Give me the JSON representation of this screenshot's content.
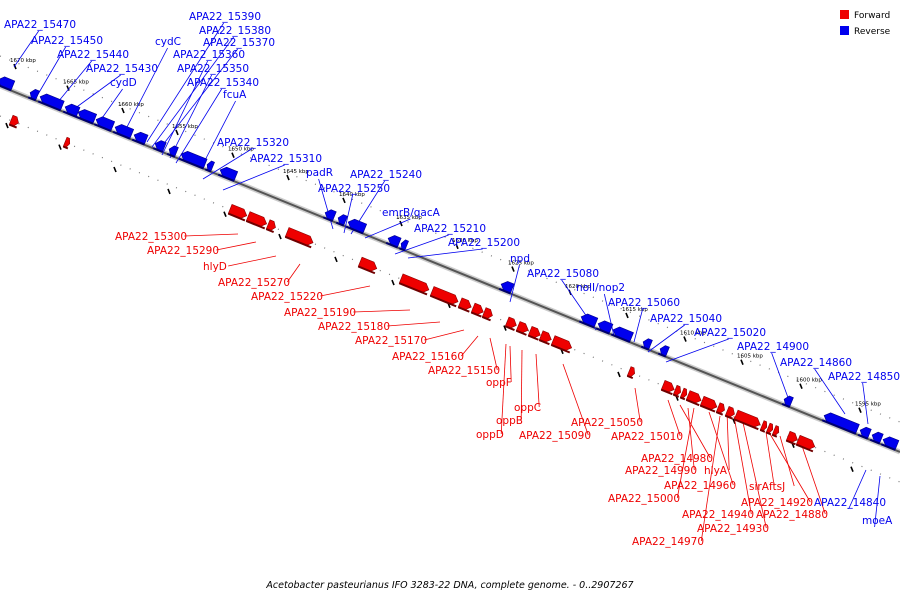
{
  "caption": "Acetobacter pasteurianus IFO 3283-22 DNA, complete genome. - 0..2907267",
  "legend": [
    {
      "label": "Forward",
      "color": "#ee0000"
    },
    {
      "label": "Reverse",
      "color": "#0000ee"
    }
  ],
  "ticks": [
    "1670 kbp",
    "1665 kbp",
    "1660 kbp",
    "1655 kbp",
    "1650 kbp",
    "1645 kbp",
    "1640 kbp",
    "1635 kbp",
    "1630 kbp",
    "1625 kbp",
    "1620 kbp",
    "1615 kbp",
    "1610 kbp",
    "1605 kbp",
    "1600 kbp",
    "1595 kbp"
  ],
  "reverse_genes": [
    "APA22_15470",
    "APA22_15450",
    "APA22_15440",
    "APA22_15430",
    "cydD",
    "cydC",
    "APA22_15390",
    "APA22_15380",
    "APA22_15370",
    "APA22_15360",
    "APA22_15350",
    "APA22_15340",
    "fcuA",
    "APA22_15320",
    "APA22_15310",
    "padR",
    "APA22_15250",
    "APA22_15240",
    "emrB/qacA",
    "APA22_15210",
    "APA22_15200",
    "npd",
    "APA22_15080",
    "nolI/nop2",
    "APA22_15060",
    "APA22_15040",
    "APA22_15020",
    "APA22_14900",
    "APA22_14860",
    "APA22_14850",
    "APA22_14840",
    "moeA"
  ],
  "forward_genes": [
    "APA22_15300",
    "APA22_15290",
    "hlyD",
    "APA22_15270",
    "APA22_15220",
    "APA22_15190",
    "APA22_15180",
    "APA22_15170",
    "APA22_15160",
    "APA22_15150",
    "oppF",
    "oppC",
    "oppB",
    "oppD",
    "APA22_15090",
    "APA22_15050",
    "APA22_15010",
    "APA22_14980",
    "APA22_14990",
    "hlyA",
    "APA22_14960",
    "APA22_15000",
    "APA22_14920",
    "sirA",
    "ftsJ",
    "APA22_14940",
    "APA22_14880",
    "APA22_14930",
    "APA22_14970"
  ]
}
